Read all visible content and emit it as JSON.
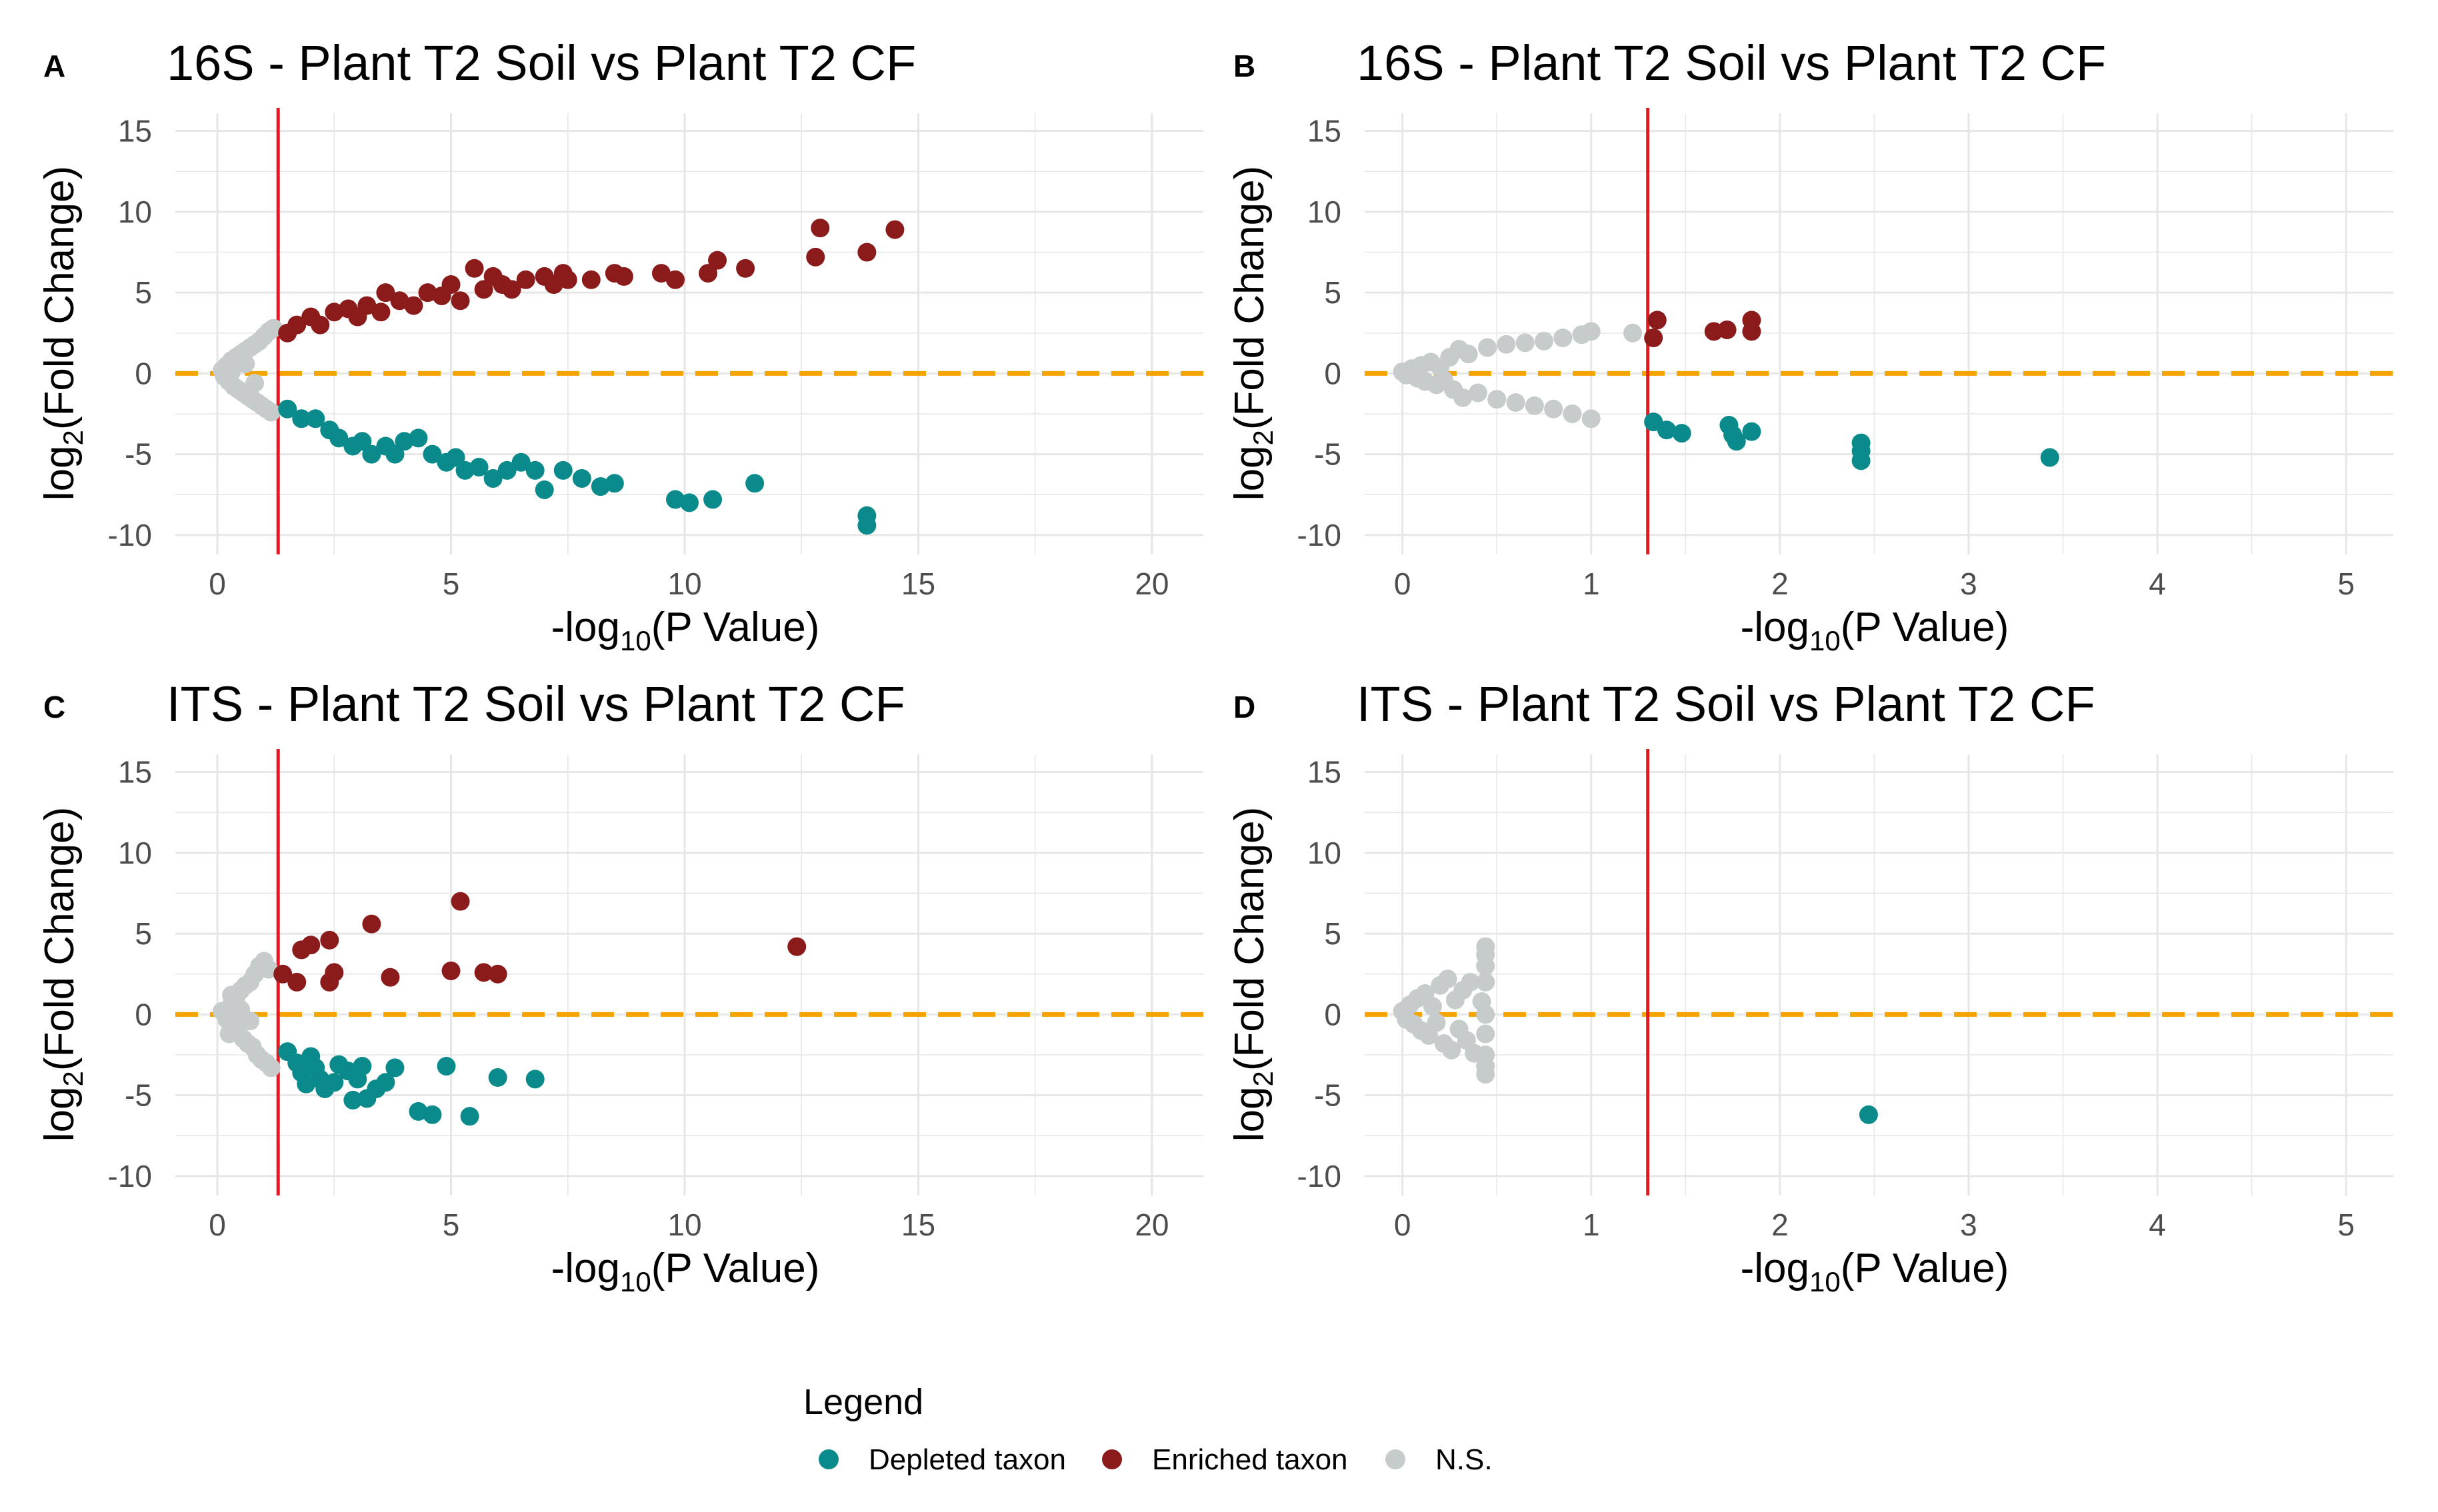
{
  "colors": {
    "depleted": "#0a8a8a",
    "enriched": "#8b1a1a",
    "ns": "#c6cccc",
    "threshold_line": "#e8161d",
    "zero_line": "#f5a300",
    "grid": "#e6e6e6"
  },
  "axis_text": {
    "ylabel_main": "log",
    "ylabel_sub": "2",
    "ylabel_rest": "(Fold Change)",
    "xlabel_main": "-log",
    "xlabel_sub": "10",
    "xlabel_rest": "(P Value)"
  },
  "legend": {
    "title": "Legend",
    "items": [
      {
        "label": "Depleted taxon",
        "color_key": "depleted"
      },
      {
        "label": "Enriched taxon",
        "color_key": "enriched"
      },
      {
        "label": "N.S.",
        "color_key": "ns"
      }
    ]
  },
  "chart_data": [
    {
      "panel": "A",
      "type": "scatter",
      "title": "16S - Plant T2 Soil vs Plant T2 CF",
      "xlim": [
        -0.9,
        21.1
      ],
      "ylim": [
        -11.2,
        16.1
      ],
      "xticks": [
        0,
        5,
        10,
        15,
        20
      ],
      "yticks": [
        15,
        10,
        5,
        0,
        -5,
        -10
      ],
      "vline": 1.3,
      "hline": 0,
      "series": [
        {
          "name": "N.S.",
          "points": [
            [
              0.1,
              0.2
            ],
            [
              0.15,
              -0.2
            ],
            [
              0.2,
              0.5
            ],
            [
              0.25,
              -0.5
            ],
            [
              0.3,
              0.8
            ],
            [
              0.35,
              -0.8
            ],
            [
              0.4,
              1.0
            ],
            [
              0.45,
              -1.0
            ],
            [
              0.5,
              1.2
            ],
            [
              0.55,
              -1.2
            ],
            [
              0.6,
              1.4
            ],
            [
              0.65,
              -1.4
            ],
            [
              0.7,
              1.6
            ],
            [
              0.75,
              -1.6
            ],
            [
              0.8,
              1.8
            ],
            [
              0.85,
              -1.8
            ],
            [
              0.9,
              2.0
            ],
            [
              0.95,
              -2.0
            ],
            [
              1.0,
              2.3
            ],
            [
              1.05,
              -2.2
            ],
            [
              1.1,
              2.6
            ],
            [
              1.15,
              -2.4
            ],
            [
              1.2,
              2.8
            ],
            [
              0.6,
              0.6
            ],
            [
              0.8,
              -0.6
            ],
            [
              0.3,
              0.1
            ],
            [
              0.2,
              -0.1
            ]
          ]
        },
        {
          "name": "Enriched taxon",
          "points": [
            [
              1.5,
              2.5
            ],
            [
              1.7,
              3.0
            ],
            [
              2.0,
              3.5
            ],
            [
              2.2,
              3.0
            ],
            [
              2.5,
              3.8
            ],
            [
              2.8,
              4.0
            ],
            [
              3.0,
              3.5
            ],
            [
              3.2,
              4.2
            ],
            [
              3.5,
              3.8
            ],
            [
              3.6,
              5.0
            ],
            [
              3.9,
              4.5
            ],
            [
              4.2,
              4.2
            ],
            [
              4.5,
              5.0
            ],
            [
              4.8,
              4.8
            ],
            [
              5.0,
              5.5
            ],
            [
              5.2,
              4.5
            ],
            [
              5.5,
              6.5
            ],
            [
              5.7,
              5.2
            ],
            [
              5.9,
              6.0
            ],
            [
              6.1,
              5.5
            ],
            [
              6.3,
              5.2
            ],
            [
              6.6,
              5.8
            ],
            [
              7.0,
              6.0
            ],
            [
              7.2,
              5.5
            ],
            [
              7.4,
              6.2
            ],
            [
              7.5,
              5.8
            ],
            [
              8.0,
              5.8
            ],
            [
              8.5,
              6.2
            ],
            [
              8.7,
              6.0
            ],
            [
              9.5,
              6.2
            ],
            [
              9.8,
              5.8
            ],
            [
              10.5,
              6.2
            ],
            [
              10.7,
              7.0
            ],
            [
              11.3,
              6.5
            ],
            [
              12.8,
              7.2
            ],
            [
              12.9,
              9.0
            ],
            [
              13.9,
              7.5
            ],
            [
              14.5,
              8.9
            ]
          ]
        },
        {
          "name": "Depleted taxon",
          "points": [
            [
              1.5,
              -2.2
            ],
            [
              1.8,
              -2.8
            ],
            [
              2.1,
              -2.8
            ],
            [
              2.4,
              -3.5
            ],
            [
              2.6,
              -4.0
            ],
            [
              2.9,
              -4.5
            ],
            [
              3.1,
              -4.2
            ],
            [
              3.3,
              -5.0
            ],
            [
              3.6,
              -4.5
            ],
            [
              3.8,
              -5.0
            ],
            [
              4.0,
              -4.2
            ],
            [
              4.3,
              -4.0
            ],
            [
              4.6,
              -5.0
            ],
            [
              4.9,
              -5.5
            ],
            [
              5.1,
              -5.2
            ],
            [
              5.3,
              -6.0
            ],
            [
              5.6,
              -5.8
            ],
            [
              5.9,
              -6.5
            ],
            [
              6.2,
              -6.0
            ],
            [
              6.5,
              -5.5
            ],
            [
              6.8,
              -6.0
            ],
            [
              7.0,
              -7.2
            ],
            [
              7.4,
              -6.0
            ],
            [
              7.8,
              -6.5
            ],
            [
              8.2,
              -7.0
            ],
            [
              8.5,
              -6.8
            ],
            [
              9.8,
              -7.8
            ],
            [
              10.1,
              -8.0
            ],
            [
              10.6,
              -7.8
            ],
            [
              11.5,
              -6.8
            ],
            [
              13.9,
              -8.8
            ],
            [
              13.9,
              -9.4
            ]
          ]
        }
      ]
    },
    {
      "panel": "B",
      "type": "scatter",
      "title": "16S - Plant T2 Soil vs Plant T2 CF",
      "xlim": [
        -0.2,
        5.25
      ],
      "ylim": [
        -11.2,
        16.1
      ],
      "xticks": [
        0,
        1,
        2,
        3,
        4,
        5
      ],
      "yticks": [
        15,
        10,
        5,
        0,
        -5,
        -10
      ],
      "vline": 1.3,
      "hline": 0,
      "series": [
        {
          "name": "N.S.",
          "points": [
            [
              0.0,
              0.1
            ],
            [
              0.02,
              -0.1
            ],
            [
              0.05,
              0.3
            ],
            [
              0.08,
              -0.3
            ],
            [
              0.1,
              0.5
            ],
            [
              0.12,
              -0.5
            ],
            [
              0.15,
              0.7
            ],
            [
              0.18,
              -0.7
            ],
            [
              0.2,
              0.4
            ],
            [
              0.22,
              -0.4
            ],
            [
              0.25,
              1.0
            ],
            [
              0.27,
              -1.0
            ],
            [
              0.3,
              1.5
            ],
            [
              0.32,
              -1.5
            ],
            [
              0.35,
              1.2
            ],
            [
              0.4,
              -1.2
            ],
            [
              0.45,
              1.6
            ],
            [
              0.5,
              -1.6
            ],
            [
              0.55,
              1.8
            ],
            [
              0.6,
              -1.8
            ],
            [
              0.65,
              1.9
            ],
            [
              0.7,
              -2.0
            ],
            [
              0.75,
              2.0
            ],
            [
              0.8,
              -2.2
            ],
            [
              0.85,
              2.2
            ],
            [
              0.9,
              -2.5
            ],
            [
              0.95,
              2.4
            ],
            [
              1.0,
              -2.8
            ],
            [
              1.0,
              2.6
            ],
            [
              1.22,
              2.5
            ]
          ]
        },
        {
          "name": "Enriched taxon",
          "points": [
            [
              1.35,
              3.3
            ],
            [
              1.33,
              2.2
            ],
            [
              1.65,
              2.6
            ],
            [
              1.72,
              2.7
            ],
            [
              1.85,
              3.3
            ],
            [
              1.85,
              2.6
            ]
          ]
        },
        {
          "name": "Depleted taxon",
          "points": [
            [
              1.33,
              -3.0
            ],
            [
              1.4,
              -3.5
            ],
            [
              1.48,
              -3.7
            ],
            [
              1.73,
              -3.2
            ],
            [
              1.75,
              -3.8
            ],
            [
              1.77,
              -4.2
            ],
            [
              1.85,
              -3.6
            ],
            [
              2.43,
              -4.3
            ],
            [
              2.43,
              -4.8
            ],
            [
              2.43,
              -5.4
            ],
            [
              3.43,
              -5.2
            ]
          ]
        }
      ]
    },
    {
      "panel": "C",
      "type": "scatter",
      "title": "ITS - Plant T2 Soil vs Plant T2 CF",
      "xlim": [
        -0.9,
        21.1
      ],
      "ylim": [
        -11.2,
        16.1
      ],
      "xticks": [
        0,
        5,
        10,
        15,
        20
      ],
      "yticks": [
        15,
        10,
        5,
        0,
        -5,
        -10
      ],
      "vline": 1.3,
      "hline": 0,
      "series": [
        {
          "name": "N.S.",
          "points": [
            [
              0.1,
              0.2
            ],
            [
              0.2,
              -0.3
            ],
            [
              0.3,
              0.6
            ],
            [
              0.35,
              -0.6
            ],
            [
              0.4,
              1.0
            ],
            [
              0.45,
              -1.0
            ],
            [
              0.5,
              1.5
            ],
            [
              0.55,
              -1.5
            ],
            [
              0.6,
              1.8
            ],
            [
              0.65,
              -1.8
            ],
            [
              0.7,
              2.0
            ],
            [
              0.75,
              -2.0
            ],
            [
              0.8,
              2.5
            ],
            [
              0.85,
              -2.5
            ],
            [
              0.9,
              3.0
            ],
            [
              0.95,
              -2.8
            ],
            [
              1.0,
              3.3
            ],
            [
              1.05,
              -3.0
            ],
            [
              1.1,
              2.8
            ],
            [
              1.15,
              -3.3
            ],
            [
              0.5,
              0.3
            ],
            [
              0.7,
              -0.4
            ],
            [
              0.3,
              1.2
            ],
            [
              0.25,
              -1.2
            ]
          ]
        },
        {
          "name": "Enriched taxon",
          "points": [
            [
              1.4,
              2.5
            ],
            [
              1.7,
              2.0
            ],
            [
              1.8,
              4.0
            ],
            [
              2.0,
              4.3
            ],
            [
              2.4,
              4.6
            ],
            [
              2.4,
              2.0
            ],
            [
              2.5,
              2.6
            ],
            [
              3.3,
              5.6
            ],
            [
              3.7,
              2.3
            ],
            [
              5.0,
              2.7
            ],
            [
              5.2,
              7.0
            ],
            [
              5.7,
              2.6
            ],
            [
              6.0,
              2.5
            ],
            [
              12.4,
              4.2
            ]
          ]
        },
        {
          "name": "Depleted taxon",
          "points": [
            [
              1.5,
              -2.3
            ],
            [
              1.7,
              -3.0
            ],
            [
              1.8,
              -3.6
            ],
            [
              1.9,
              -4.3
            ],
            [
              2.0,
              -2.6
            ],
            [
              2.1,
              -3.3
            ],
            [
              2.2,
              -4.0
            ],
            [
              2.3,
              -4.6
            ],
            [
              2.5,
              -4.2
            ],
            [
              2.6,
              -3.1
            ],
            [
              2.8,
              -3.5
            ],
            [
              2.9,
              -5.3
            ],
            [
              3.0,
              -4.0
            ],
            [
              3.1,
              -3.2
            ],
            [
              3.2,
              -5.2
            ],
            [
              3.4,
              -4.6
            ],
            [
              3.6,
              -4.2
            ],
            [
              3.8,
              -3.3
            ],
            [
              4.3,
              -6.0
            ],
            [
              4.6,
              -6.2
            ],
            [
              4.9,
              -3.2
            ],
            [
              5.4,
              -6.3
            ],
            [
              6.0,
              -3.9
            ],
            [
              6.8,
              -4.0
            ]
          ]
        }
      ]
    },
    {
      "panel": "D",
      "type": "scatter",
      "title": "ITS - Plant T2 Soil vs Plant T2 CF",
      "xlim": [
        -0.2,
        5.25
      ],
      "ylim": [
        -11.2,
        16.1
      ],
      "xticks": [
        0,
        1,
        2,
        3,
        4,
        5
      ],
      "yticks": [
        15,
        10,
        5,
        0,
        -5,
        -10
      ],
      "vline": 1.3,
      "hline": 0,
      "series": [
        {
          "name": "N.S.",
          "points": [
            [
              0.0,
              0.2
            ],
            [
              0.02,
              -0.3
            ],
            [
              0.04,
              0.6
            ],
            [
              0.06,
              -0.6
            ],
            [
              0.08,
              1.0
            ],
            [
              0.1,
              -1.0
            ],
            [
              0.12,
              1.3
            ],
            [
              0.14,
              -1.3
            ],
            [
              0.16,
              0.5
            ],
            [
              0.18,
              -0.5
            ],
            [
              0.2,
              1.8
            ],
            [
              0.22,
              -1.8
            ],
            [
              0.24,
              2.2
            ],
            [
              0.26,
              -2.2
            ],
            [
              0.28,
              0.9
            ],
            [
              0.3,
              -0.9
            ],
            [
              0.32,
              1.5
            ],
            [
              0.34,
              -1.6
            ],
            [
              0.36,
              2.0
            ],
            [
              0.38,
              -2.4
            ],
            [
              0.42,
              0.8
            ],
            [
              0.44,
              -1.2
            ],
            [
              0.44,
              2.0
            ],
            [
              0.44,
              -2.5
            ],
            [
              0.44,
              3.0
            ],
            [
              0.44,
              -3.2
            ],
            [
              0.44,
              3.7
            ],
            [
              0.44,
              4.2
            ],
            [
              0.44,
              -3.7
            ],
            [
              0.44,
              0.0
            ]
          ]
        },
        {
          "name": "Enriched taxon",
          "points": []
        },
        {
          "name": "Depleted taxon",
          "points": [
            [
              2.47,
              -6.2
            ]
          ]
        }
      ]
    }
  ]
}
